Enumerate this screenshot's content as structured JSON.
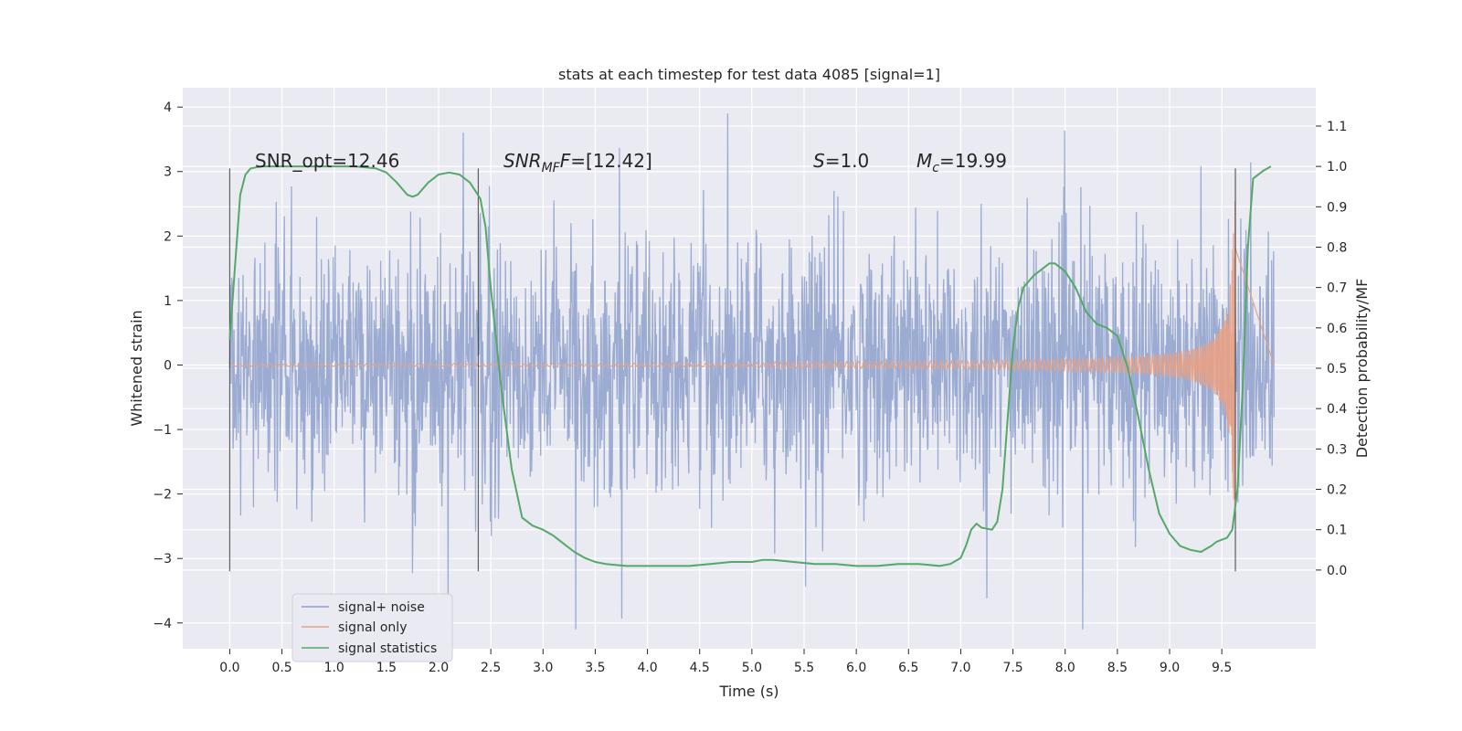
{
  "chart_data": {
    "type": "line",
    "title": "stats at each timestep for test data 4085 [signal=1]",
    "xlabel": "Time (s)",
    "ylabel": "Whitened strain",
    "y2label": "Detection probability/MF",
    "xlim": [
      -0.45,
      10.4
    ],
    "ylim": [
      -4.4,
      4.3
    ],
    "y2lim": [
      -0.195,
      1.195
    ],
    "xticks": [
      "0.0",
      "0.5",
      "1.0",
      "1.5",
      "2.0",
      "2.5",
      "3.0",
      "3.5",
      "4.0",
      "4.5",
      "5.0",
      "5.5",
      "6.0",
      "6.5",
      "7.0",
      "7.5",
      "8.0",
      "8.5",
      "9.0",
      "9.5"
    ],
    "yticks": [
      "4",
      "3",
      "2",
      "1",
      "0",
      "−1",
      "−2",
      "−3",
      "−4"
    ],
    "y2ticks": [
      "1.1",
      "1.0",
      "0.9",
      "0.8",
      "0.7",
      "0.6",
      "0.5",
      "0.4",
      "0.3",
      "0.2",
      "0.1",
      "0.0"
    ],
    "grid": true,
    "legend_position": "lower-left",
    "annotations": {
      "snr_opt": "SNR_opt=12.46",
      "snr_mf_label": "SNR",
      "snr_mf_sub": "MF",
      "snr_mf_value": "=[12.42]",
      "s_label": "S",
      "s_value": "=1.0",
      "mc_label": "M",
      "mc_sub": "c",
      "mc_value": "=19.99"
    },
    "vertical_lines_x": [
      0.0,
      2.38,
      9.63
    ],
    "series": [
      {
        "name": "signal+ noise",
        "color": "#8da0cb",
        "description_range": {
          "x_start": 0.0,
          "x_end": 10.0,
          "y_min": -4.1,
          "y_max": 3.9,
          "typical_abs": 1.8
        }
      },
      {
        "name": "signal only",
        "color": "#e8a184",
        "chirp": {
          "x_start": 0.0,
          "x_end": 9.63,
          "amplitude_end": 3.0,
          "amplitude_mid": 0.3
        }
      },
      {
        "name": "signal statistics",
        "color": "#55a868",
        "axis": "right",
        "x": [
          0.0,
          0.05,
          0.1,
          0.15,
          0.2,
          0.3,
          0.5,
          0.8,
          1.0,
          1.2,
          1.4,
          1.5,
          1.6,
          1.7,
          1.75,
          1.8,
          1.9,
          2.0,
          2.1,
          2.2,
          2.3,
          2.35,
          2.4,
          2.45,
          2.5,
          2.6,
          2.7,
          2.8,
          2.9,
          3.0,
          3.1,
          3.2,
          3.3,
          3.4,
          3.5,
          3.6,
          3.8,
          4.0,
          4.2,
          4.4,
          4.6,
          4.8,
          5.0,
          5.1,
          5.2,
          5.4,
          5.6,
          5.8,
          6.0,
          6.2,
          6.4,
          6.6,
          6.8,
          6.9,
          7.0,
          7.05,
          7.1,
          7.15,
          7.2,
          7.3,
          7.35,
          7.4,
          7.45,
          7.5,
          7.55,
          7.6,
          7.7,
          7.8,
          7.85,
          7.9,
          7.95,
          8.0,
          8.1,
          8.2,
          8.3,
          8.4,
          8.5,
          8.6,
          8.7,
          8.8,
          8.9,
          9.0,
          9.1,
          9.2,
          9.3,
          9.4,
          9.45,
          9.5,
          9.55,
          9.6,
          9.65,
          9.7,
          9.75,
          9.8,
          9.9,
          9.97
        ],
        "y": [
          0.57,
          0.75,
          0.93,
          0.98,
          0.995,
          1.0,
          1.0,
          1.0,
          1.0,
          1.0,
          0.995,
          0.985,
          0.96,
          0.93,
          0.925,
          0.93,
          0.96,
          0.98,
          0.985,
          0.98,
          0.96,
          0.94,
          0.92,
          0.85,
          0.7,
          0.45,
          0.25,
          0.13,
          0.11,
          0.1,
          0.085,
          0.065,
          0.045,
          0.03,
          0.02,
          0.015,
          0.01,
          0.01,
          0.01,
          0.01,
          0.015,
          0.02,
          0.02,
          0.025,
          0.025,
          0.02,
          0.015,
          0.015,
          0.01,
          0.01,
          0.015,
          0.015,
          0.01,
          0.015,
          0.03,
          0.06,
          0.1,
          0.115,
          0.105,
          0.1,
          0.12,
          0.2,
          0.38,
          0.55,
          0.65,
          0.7,
          0.73,
          0.75,
          0.76,
          0.76,
          0.75,
          0.74,
          0.7,
          0.64,
          0.61,
          0.6,
          0.58,
          0.5,
          0.38,
          0.25,
          0.14,
          0.09,
          0.06,
          0.05,
          0.045,
          0.06,
          0.07,
          0.075,
          0.08,
          0.1,
          0.2,
          0.45,
          0.8,
          0.97,
          0.99,
          1.0
        ]
      }
    ]
  }
}
